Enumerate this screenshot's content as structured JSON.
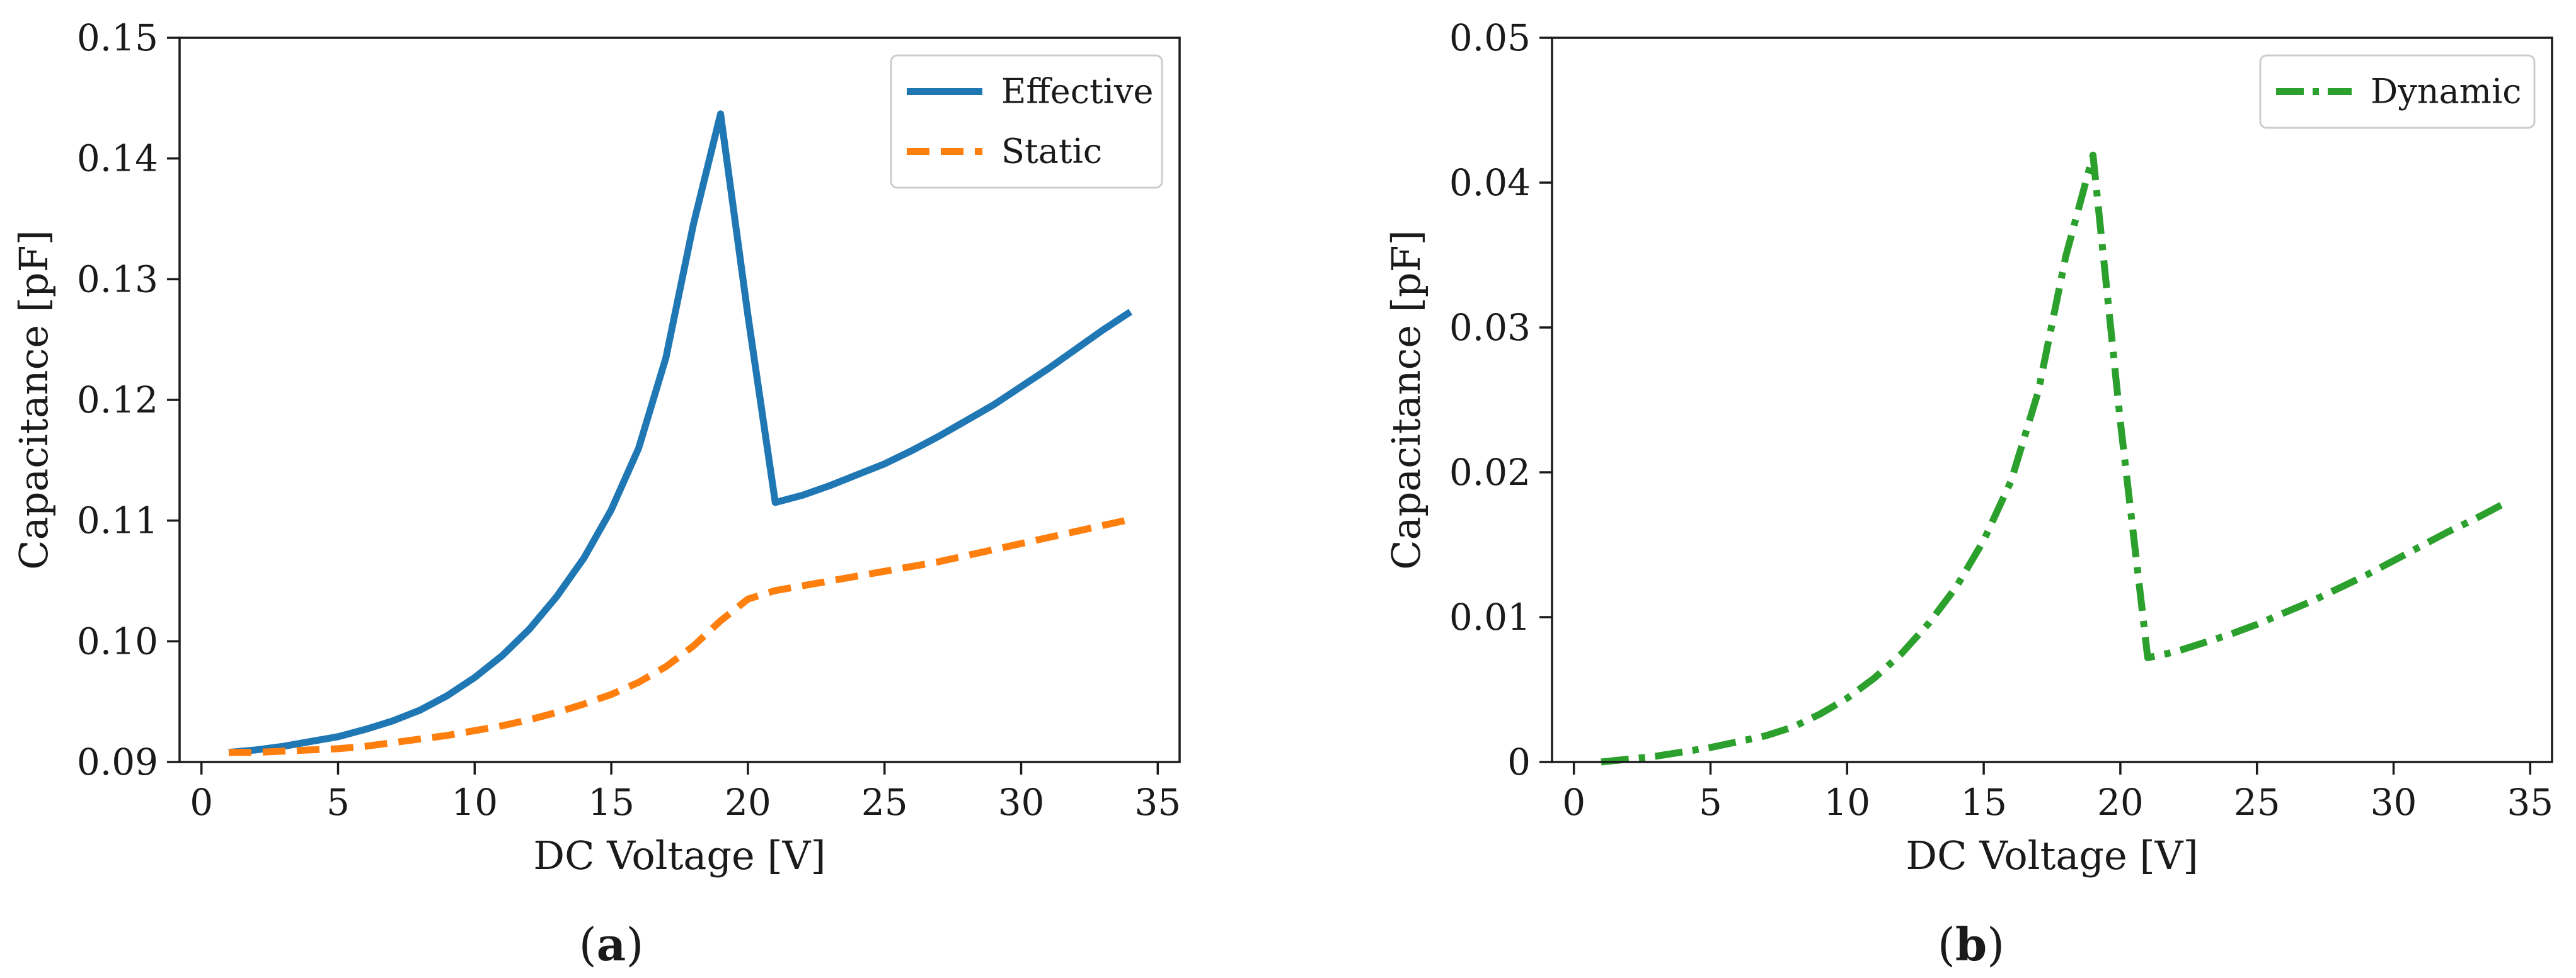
{
  "chart_data": [
    {
      "type": "line",
      "panel": "a",
      "caption_letter": "a",
      "title": "",
      "xlabel": "DC Voltage [V]",
      "ylabel": "Capacitance [pF]",
      "xlim": [
        -0.8,
        35.8
      ],
      "ylim": [
        0.09,
        0.15
      ],
      "xticks": [
        0,
        5,
        10,
        15,
        20,
        25,
        30,
        35
      ],
      "xtick_labels": [
        "0",
        "5",
        "10",
        "15",
        "20",
        "25",
        "30",
        "35"
      ],
      "yticks": [
        0.09,
        0.1,
        0.11,
        0.12,
        0.13,
        0.14,
        0.15
      ],
      "ytick_labels": [
        "0.09",
        "0.10",
        "0.11",
        "0.12",
        "0.13",
        "0.14",
        "0.15"
      ],
      "grid": false,
      "legend_position": "top-right",
      "series": [
        {
          "name": "Effective",
          "color": "#1f77b4",
          "style": "solid",
          "x": [
            1,
            2,
            3,
            4,
            5,
            6,
            7,
            8,
            9,
            10,
            11,
            12,
            13,
            14,
            15,
            16,
            17,
            18,
            19,
            20,
            21,
            22,
            23,
            24,
            25,
            26,
            27,
            28,
            29,
            30,
            31,
            32,
            33,
            34
          ],
          "values": [
            0.0908,
            0.091,
            0.0913,
            0.0917,
            0.0921,
            0.0927,
            0.0934,
            0.0943,
            0.0955,
            0.097,
            0.0988,
            0.101,
            0.1037,
            0.1069,
            0.1109,
            0.116,
            0.1235,
            0.1345,
            0.1437,
            0.127,
            0.1115,
            0.1121,
            0.1129,
            0.1138,
            0.1147,
            0.1158,
            0.117,
            0.1183,
            0.1196,
            0.1211,
            0.1226,
            0.1242,
            0.1258,
            0.1273
          ]
        },
        {
          "name": "Static",
          "color": "#ff7f0e",
          "style": "dashed",
          "x": [
            1,
            2,
            3,
            4,
            5,
            6,
            7,
            8,
            9,
            10,
            11,
            12,
            13,
            14,
            15,
            16,
            17,
            18,
            19,
            20,
            21,
            22,
            23,
            24,
            25,
            26,
            27,
            28,
            29,
            30,
            31,
            32,
            33,
            34
          ],
          "values": [
            0.0908,
            0.0908,
            0.0909,
            0.091,
            0.0911,
            0.0913,
            0.0916,
            0.0919,
            0.0922,
            0.0926,
            0.093,
            0.0935,
            0.0941,
            0.0948,
            0.0956,
            0.0966,
            0.0979,
            0.0996,
            0.1017,
            0.1035,
            0.1042,
            0.1046,
            0.105,
            0.1054,
            0.1058,
            0.1062,
            0.1066,
            0.1071,
            0.1076,
            0.1081,
            0.1086,
            0.1091,
            0.1096,
            0.1101
          ]
        }
      ]
    },
    {
      "type": "line",
      "panel": "b",
      "caption_letter": "b",
      "title": "",
      "xlabel": "DC Voltage [V]",
      "ylabel": "Capacitance [pF]",
      "xlim": [
        -0.8,
        35.8
      ],
      "ylim": [
        0,
        0.05
      ],
      "xticks": [
        0,
        5,
        10,
        15,
        20,
        25,
        30,
        35
      ],
      "xtick_labels": [
        "0",
        "5",
        "10",
        "15",
        "20",
        "25",
        "30",
        "35"
      ],
      "yticks": [
        0,
        0.01,
        0.02,
        0.03,
        0.04,
        0.05
      ],
      "ytick_labels": [
        "0",
        "0.01",
        "0.02",
        "0.03",
        "0.04",
        "0.05"
      ],
      "grid": false,
      "legend_position": "top-right",
      "series": [
        {
          "name": "Dynamic",
          "color": "#2ca02c",
          "style": "dashdot",
          "x": [
            1,
            2,
            3,
            4,
            5,
            6,
            7,
            8,
            9,
            10,
            11,
            12,
            13,
            14,
            15,
            16,
            17,
            18,
            19,
            20,
            21,
            22,
            23,
            24,
            25,
            26,
            27,
            28,
            29,
            30,
            31,
            32,
            33,
            34
          ],
          "values": [
            0.0,
            0.0002,
            0.0004,
            0.0007,
            0.001,
            0.0014,
            0.0018,
            0.0024,
            0.0033,
            0.0044,
            0.0058,
            0.0075,
            0.0096,
            0.0121,
            0.0153,
            0.0194,
            0.0256,
            0.0349,
            0.0419,
            0.0235,
            0.0072,
            0.0076,
            0.0082,
            0.0088,
            0.0095,
            0.0103,
            0.0111,
            0.012,
            0.0129,
            0.0139,
            0.0149,
            0.0159,
            0.0168,
            0.0178
          ]
        }
      ]
    }
  ]
}
